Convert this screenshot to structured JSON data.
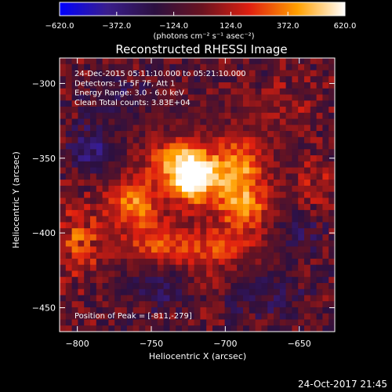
{
  "chart_data": {
    "type": "heatmap",
    "title": "Reconstructed RHESSI Image",
    "xlabel": "Heliocentric X (arcsec)",
    "ylabel": "Heliocentric Y (arcsec)",
    "xlim": [
      -812,
      -626
    ],
    "ylim": [
      -466,
      -283
    ],
    "x_ticks": [
      -800,
      -750,
      -700,
      -650
    ],
    "y_ticks": [
      -300,
      -350,
      -400,
      -450
    ],
    "grid": false,
    "colorbar": {
      "location": "top",
      "range": [
        -620,
        620
      ],
      "ticks": [
        -620.0,
        -372.0,
        -124.0,
        124.0,
        372.0,
        620.0
      ],
      "tick_labels": [
        "−620.0",
        "−372.0",
        "−124.0",
        "124.0",
        "372.0",
        "620.0"
      ],
      "units_label": "(photons cm⁻² s⁻¹ asec⁻²)",
      "colors": [
        "#0000ff",
        "#3a1e8c",
        "#2c1040",
        "#6a1320",
        "#e02010",
        "#ffa000",
        "#ffffff"
      ]
    },
    "annotations": [
      "24-Dec-2015 05:11:10.000 to 05:21:10.000",
      "Detectors: 1F 5F 7F, Att 1",
      "Energy Range: 3.0 - 6.0 keV",
      "Clean    Total counts: 3.83E+04"
    ],
    "peak_label": "Position of Peak = [-811,-279]",
    "sources": [
      {
        "x": -722,
        "y": -363,
        "sx": 11,
        "sy": 12,
        "amp": 720
      },
      {
        "x": -735,
        "y": -352,
        "sx": 14,
        "sy": 10,
        "amp": 360
      },
      {
        "x": -692,
        "y": -356,
        "sx": 13,
        "sy": 14,
        "amp": 470
      },
      {
        "x": -688,
        "y": -383,
        "sx": 13,
        "sy": 11,
        "amp": 420
      },
      {
        "x": -762,
        "y": -380,
        "sx": 13,
        "sy": 12,
        "amp": 430
      },
      {
        "x": -742,
        "y": -408,
        "sx": 19,
        "sy": 11,
        "amp": 310
      },
      {
        "x": -700,
        "y": -410,
        "sx": 18,
        "sy": 9,
        "amp": 260
      },
      {
        "x": -800,
        "y": -405,
        "sx": 12,
        "sy": 17,
        "amp": 280
      },
      {
        "x": -715,
        "y": -435,
        "sx": 14,
        "sy": 9,
        "amp": 170
      },
      {
        "x": -660,
        "y": -315,
        "sx": 18,
        "sy": 12,
        "amp": 120
      },
      {
        "x": -640,
        "y": -365,
        "sx": 9,
        "sy": 14,
        "amp": 150
      },
      {
        "x": -790,
        "y": -345,
        "sx": 10,
        "sy": 10,
        "amp": -330
      },
      {
        "x": -775,
        "y": -310,
        "sx": 14,
        "sy": 10,
        "amp": -160
      },
      {
        "x": -740,
        "y": -435,
        "sx": 18,
        "sy": 10,
        "amp": -240
      },
      {
        "x": -675,
        "y": -440,
        "sx": 18,
        "sy": 10,
        "amp": -190
      },
      {
        "x": -650,
        "y": -400,
        "sx": 12,
        "sy": 12,
        "amp": -160
      }
    ],
    "background_level": -60,
    "noise_level": 110
  },
  "footer": {
    "date": "24-Oct-2017 21:45"
  }
}
